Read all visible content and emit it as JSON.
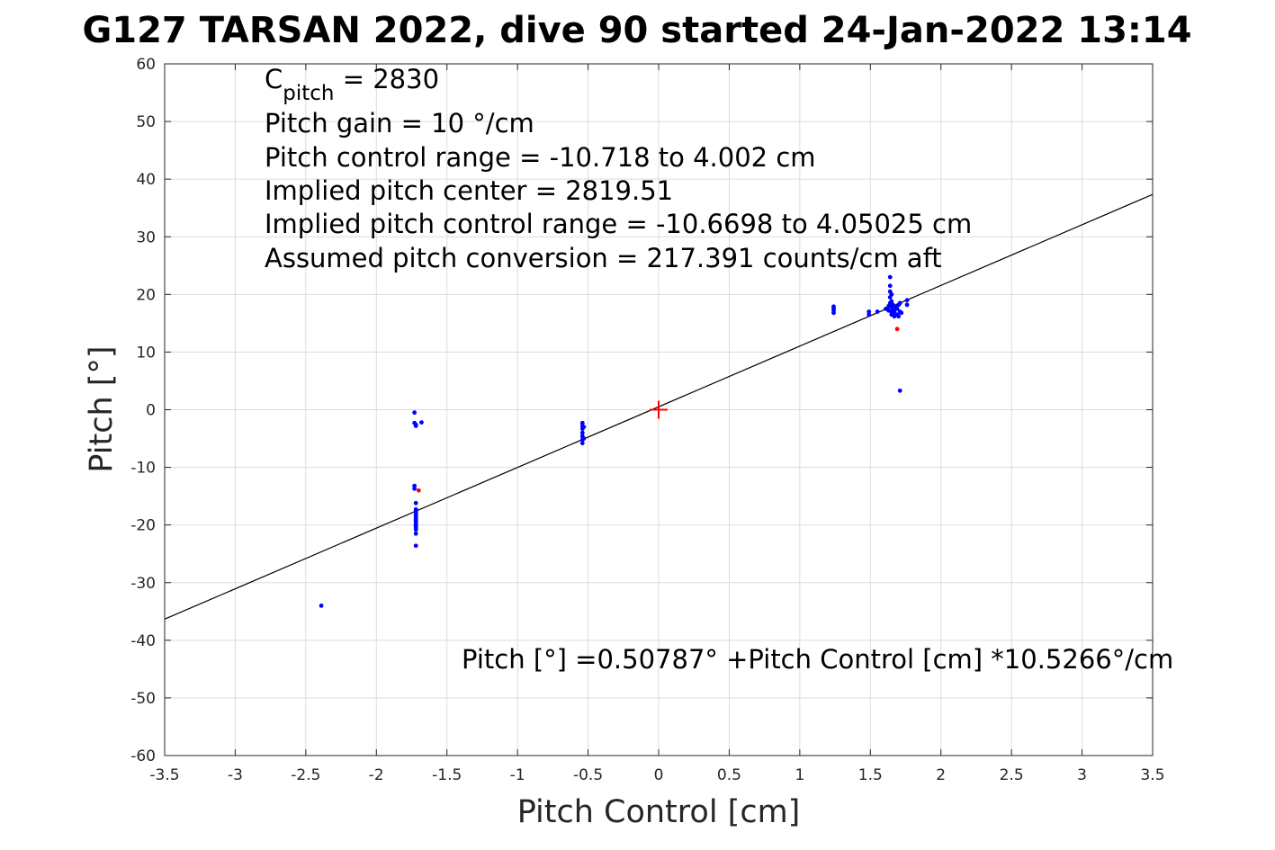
{
  "chart_data": {
    "type": "scatter",
    "title": "G127 TARSAN 2022, dive 90 started 24-Jan-2022 13:14",
    "xlabel": "Pitch Control [cm]",
    "ylabel": "Pitch [°]",
    "xlim": [
      -3.5,
      3.5
    ],
    "ylim": [
      -60,
      60
    ],
    "xticks": [
      -3.5,
      -3,
      -2.5,
      -2,
      -1.5,
      -1,
      -0.5,
      0,
      0.5,
      1,
      1.5,
      2,
      2.5,
      3,
      3.5
    ],
    "xtick_labels": [
      "-3.5",
      "-3",
      "-2.5",
      "-2",
      "-1.5",
      "-1",
      "-0.5",
      "0",
      "0.5",
      "1",
      "1.5",
      "2",
      "2.5",
      "3",
      "3.5"
    ],
    "yticks": [
      -60,
      -50,
      -40,
      -30,
      -20,
      -10,
      0,
      10,
      20,
      30,
      40,
      50,
      60
    ],
    "ytick_labels": [
      "-60",
      "-50",
      "-40",
      "-30",
      "-20",
      "-10",
      "0",
      "10",
      "20",
      "30",
      "40",
      "50",
      "60"
    ],
    "grid": true,
    "colors": {
      "points": "#0000ff",
      "flagged": "#ff0000",
      "fit": "#000000",
      "center": "#ff0000"
    },
    "fit_line": {
      "intercept": 0.50787,
      "slope": 10.5266,
      "x_range": [
        -3.5,
        3.5
      ]
    },
    "center_marker": {
      "x": 0,
      "y": 0
    },
    "annotations": {
      "c_pitch_symbol": "C",
      "c_pitch_subscript": "pitch",
      "c_pitch_value": " = 2830",
      "lines": [
        "Pitch gain = 10 °/cm",
        "Pitch control range = -10.718 to 4.002 cm",
        "Implied pitch center = 2819.51",
        "Implied pitch control range = -10.6698 to 4.05025 cm",
        "Assumed pitch conversion = 217.391 counts/cm aft"
      ],
      "fit_equation": "Pitch [°] =0.50787° +Pitch Control [cm] *10.5266°/cm"
    },
    "series": [
      {
        "x": [
          -2.39,
          -1.73,
          -1.73,
          -1.72,
          -1.72,
          -1.68,
          -1.73,
          -1.73,
          -1.72,
          -1.72,
          -1.72,
          -1.72,
          -1.72,
          -1.72,
          -1.72,
          -1.72,
          -1.72,
          -1.72,
          -1.72,
          -1.72,
          -1.72,
          -1.72,
          -1.72,
          -1.72,
          -1.72,
          -1.72,
          -0.54,
          -0.54,
          -0.54,
          -0.54,
          -0.54,
          -0.54,
          -0.54,
          -0.53,
          -0.53,
          1.24,
          1.24,
          1.24,
          1.24,
          1.49,
          1.49,
          1.55,
          1.61,
          1.63,
          1.63,
          1.64,
          1.64,
          1.64,
          1.64,
          1.64,
          1.65,
          1.65,
          1.65,
          1.65,
          1.65,
          1.66,
          1.66,
          1.66,
          1.67,
          1.67,
          1.68,
          1.69,
          1.69,
          1.7,
          1.7,
          1.71,
          1.71,
          1.72,
          1.76,
          1.76,
          1.71
        ],
        "y": [
          -34,
          -0.5,
          -2.3,
          -2.8,
          -2.6,
          -2.2,
          -13.2,
          -13.7,
          -16.2,
          -17.3,
          -17.8,
          -18.2,
          -18.7,
          -19.0,
          -19.4,
          -19.8,
          -20.2,
          -17.6,
          -18.4,
          -19.2,
          -20.0,
          -20.5,
          -20.8,
          -21.5,
          -23.6,
          -20.1,
          -2.3,
          -2.8,
          -3.3,
          -4.0,
          -4.6,
          -5.2,
          -5.8,
          -3.0,
          -5.0,
          16.8,
          17.2,
          17.6,
          17.9,
          16.5,
          17.0,
          17.0,
          17.5,
          17.2,
          18.0,
          23.0,
          21.5,
          20.5,
          19.5,
          18.5,
          17.0,
          16.5,
          17.8,
          18.8,
          20.0,
          17.5,
          16.8,
          18.2,
          17.0,
          16.2,
          17.8,
          16.5,
          17.5,
          16.2,
          18.2,
          18.5,
          17.0,
          16.8,
          18.2,
          19.0,
          3.3
        ]
      },
      {
        "x": [
          -1.7,
          1.69
        ],
        "y": [
          -14,
          14
        ]
      }
    ]
  }
}
